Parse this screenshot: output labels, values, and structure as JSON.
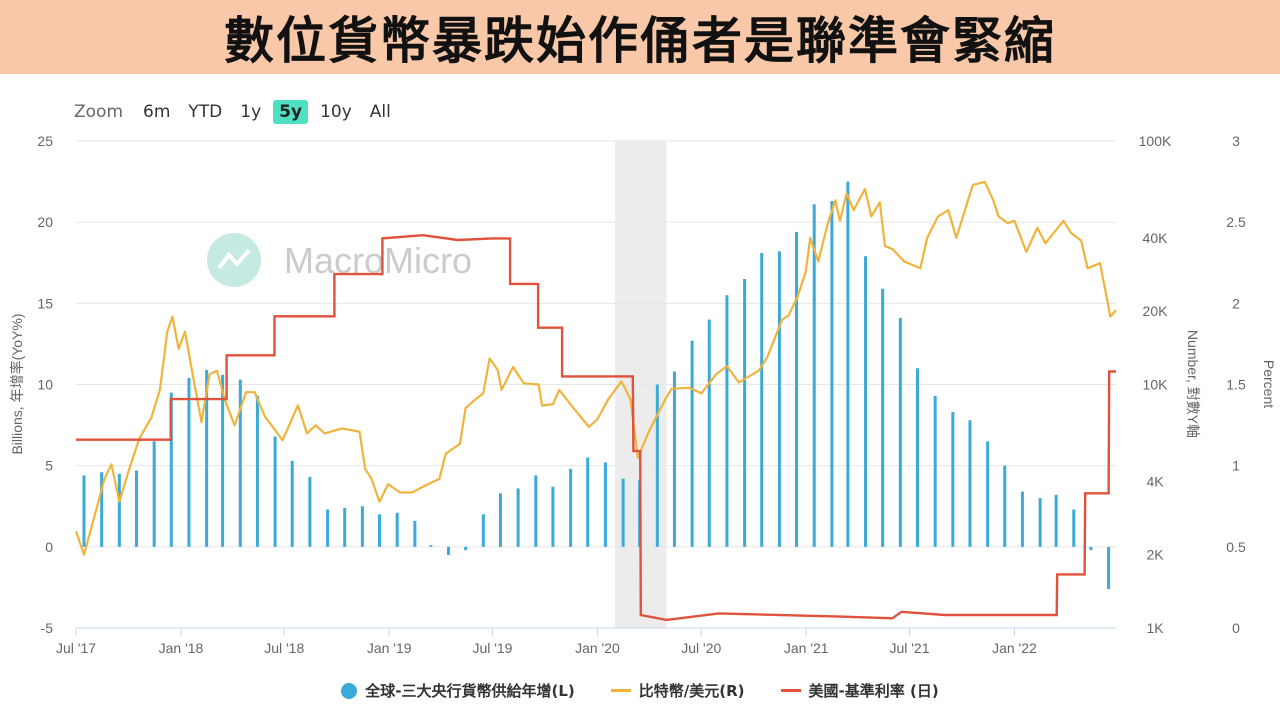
{
  "banner": {
    "title": "數位貨幣暴跌始作俑者是聯準會緊縮"
  },
  "zoom": {
    "label": "Zoom",
    "options": [
      "6m",
      "YTD",
      "1y",
      "5y",
      "10y",
      "All"
    ],
    "active": "5y"
  },
  "watermark": "MacroMicro",
  "colors": {
    "bar": "#3aaad8",
    "btc": "#f0b43c",
    "rate": "#e0523c",
    "recession": "#ececec",
    "accent": "#4de1c1"
  },
  "chart_data": {
    "type": "bar+line",
    "x_ticks": [
      "Jul '17",
      "Jan '18",
      "Jul '18",
      "Jan '19",
      "Jul '19",
      "Jan '20",
      "Jul '20",
      "Jan '21",
      "Jul '21",
      "Jan '22"
    ],
    "x_range": [
      "2017-07",
      "2022-12"
    ],
    "left_axis": {
      "label": "Billions, 年增率(YoY%)",
      "range": [
        -5,
        25
      ],
      "ticks": [
        25,
        20,
        15,
        10,
        5,
        0,
        -5
      ]
    },
    "right_axis_btc": {
      "label": "Number, 對數Y軸",
      "scale": "log",
      "range": [
        1000,
        100000
      ],
      "ticks": [
        "100K",
        "40K",
        "20K",
        "10K",
        "4K",
        "2K",
        "1K"
      ],
      "tick_values": [
        100000,
        40000,
        20000,
        10000,
        4000,
        2000,
        1000
      ]
    },
    "right_axis_rate": {
      "label": "Percent",
      "range": [
        0,
        3
      ],
      "ticks": [
        3,
        2.5,
        2,
        1.5,
        1,
        0.5,
        0
      ]
    },
    "recession_band": {
      "start": "2020-02",
      "end": "2020-05"
    },
    "series": [
      {
        "name": "全球-三大央行貨幣供給年增(L)",
        "type": "bar",
        "axis": "left",
        "points": [
          [
            "2017-07",
            4.4
          ],
          [
            "2017-08",
            4.6
          ],
          [
            "2017-09",
            4.5
          ],
          [
            "2017-10",
            4.7
          ],
          [
            "2017-11",
            6.5
          ],
          [
            "2017-12",
            9.5
          ],
          [
            "2018-01",
            10.4
          ],
          [
            "2018-02",
            10.9
          ],
          [
            "2018-03",
            10.6
          ],
          [
            "2018-04",
            10.3
          ],
          [
            "2018-05",
            9.3
          ],
          [
            "2018-06",
            6.8
          ],
          [
            "2018-07",
            5.3
          ],
          [
            "2018-08",
            4.3
          ],
          [
            "2018-09",
            2.3
          ],
          [
            "2018-10",
            2.4
          ],
          [
            "2018-11",
            2.5
          ],
          [
            "2018-12",
            2.0
          ],
          [
            "2019-01",
            2.1
          ],
          [
            "2019-02",
            1.6
          ],
          [
            "2019-03",
            0.1
          ],
          [
            "2019-04",
            -0.5
          ],
          [
            "2019-05",
            -0.2
          ],
          [
            "2019-06",
            2.0
          ],
          [
            "2019-07",
            3.3
          ],
          [
            "2019-08",
            3.6
          ],
          [
            "2019-09",
            4.4
          ],
          [
            "2019-10",
            3.7
          ],
          [
            "2019-11",
            4.8
          ],
          [
            "2019-12",
            5.5
          ],
          [
            "2020-01",
            5.2
          ],
          [
            "2020-02",
            4.2
          ],
          [
            "2020-03",
            4.1
          ],
          [
            "2020-04",
            10.0
          ],
          [
            "2020-05",
            10.8
          ],
          [
            "2020-06",
            12.7
          ],
          [
            "2020-07",
            14.0
          ],
          [
            "2020-08",
            15.5
          ],
          [
            "2020-09",
            16.5
          ],
          [
            "2020-10",
            18.1
          ],
          [
            "2020-11",
            18.2
          ],
          [
            "2020-12",
            19.4
          ],
          [
            "2021-01",
            21.1
          ],
          [
            "2021-02",
            21.3
          ],
          [
            "2021-03",
            22.5
          ],
          [
            "2021-04",
            17.9
          ],
          [
            "2021-05",
            15.9
          ],
          [
            "2021-06",
            14.1
          ],
          [
            "2021-07",
            11.0
          ],
          [
            "2021-08",
            9.3
          ],
          [
            "2021-09",
            8.3
          ],
          [
            "2021-10",
            7.8
          ],
          [
            "2021-11",
            6.5
          ],
          [
            "2021-12",
            5.0
          ],
          [
            "2022-01",
            3.4
          ],
          [
            "2022-02",
            3.0
          ],
          [
            "2022-03",
            3.2
          ],
          [
            "2022-04",
            2.3
          ],
          [
            "2022-05",
            -0.2
          ],
          [
            "2022-06",
            -2.6
          ]
        ]
      },
      {
        "name": "比特幣/美元(R)",
        "type": "line",
        "axis": "right_btc",
        "points": [
          [
            "2017-07-01",
            2500
          ],
          [
            "2017-07-15",
            2000
          ],
          [
            "2017-08-01",
            2800
          ],
          [
            "2017-08-20",
            4100
          ],
          [
            "2017-09-01",
            4700
          ],
          [
            "2017-09-15",
            3300
          ],
          [
            "2017-10-01",
            4400
          ],
          [
            "2017-10-20",
            6000
          ],
          [
            "2017-11-10",
            7300
          ],
          [
            "2017-11-25",
            9500
          ],
          [
            "2017-12-08",
            16500
          ],
          [
            "2017-12-17",
            19000
          ],
          [
            "2017-12-28",
            14000
          ],
          [
            "2018-01-08",
            16500
          ],
          [
            "2018-01-20",
            11500
          ],
          [
            "2018-02-06",
            7000
          ],
          [
            "2018-02-20",
            11000
          ],
          [
            "2018-03-05",
            11400
          ],
          [
            "2018-03-20",
            8500
          ],
          [
            "2018-04-05",
            6800
          ],
          [
            "2018-04-25",
            9300
          ],
          [
            "2018-05-10",
            9300
          ],
          [
            "2018-05-28",
            7400
          ],
          [
            "2018-06-15",
            6500
          ],
          [
            "2018-06-28",
            5900
          ],
          [
            "2018-07-25",
            8200
          ],
          [
            "2018-08-10",
            6300
          ],
          [
            "2018-08-25",
            6800
          ],
          [
            "2018-09-10",
            6300
          ],
          [
            "2018-10-10",
            6600
          ],
          [
            "2018-11-10",
            6400
          ],
          [
            "2018-11-20",
            4500
          ],
          [
            "2018-12-01",
            4100
          ],
          [
            "2018-12-15",
            3300
          ],
          [
            "2018-12-30",
            3900
          ],
          [
            "2019-01-20",
            3600
          ],
          [
            "2019-02-10",
            3600
          ],
          [
            "2019-03-01",
            3800
          ],
          [
            "2019-03-30",
            4100
          ],
          [
            "2019-04-10",
            5200
          ],
          [
            "2019-05-05",
            5700
          ],
          [
            "2019-05-15",
            8000
          ],
          [
            "2019-05-30",
            8600
          ],
          [
            "2019-06-15",
            9200
          ],
          [
            "2019-06-26",
            12800
          ],
          [
            "2019-07-10",
            11500
          ],
          [
            "2019-07-17",
            9500
          ],
          [
            "2019-08-06",
            11800
          ],
          [
            "2019-08-25",
            10100
          ],
          [
            "2019-09-20",
            10000
          ],
          [
            "2019-09-26",
            8200
          ],
          [
            "2019-10-15",
            8300
          ],
          [
            "2019-10-26",
            9500
          ],
          [
            "2019-11-20",
            8000
          ],
          [
            "2019-12-17",
            6700
          ],
          [
            "2020-01-01",
            7200
          ],
          [
            "2020-01-20",
            8700
          ],
          [
            "2020-02-12",
            10300
          ],
          [
            "2020-02-28",
            8700
          ],
          [
            "2020-03-12",
            5000
          ],
          [
            "2020-03-31",
            6400
          ],
          [
            "2020-04-29",
            8700
          ],
          [
            "2020-05-10",
            9600
          ],
          [
            "2020-06-10",
            9700
          ],
          [
            "2020-07-01",
            9200
          ],
          [
            "2020-07-27",
            11000
          ],
          [
            "2020-08-15",
            11900
          ],
          [
            "2020-09-05",
            10200
          ],
          [
            "2020-10-10",
            11400
          ],
          [
            "2020-10-25",
            13000
          ],
          [
            "2020-11-20",
            18500
          ],
          [
            "2020-12-01",
            19200
          ],
          [
            "2020-12-17",
            23000
          ],
          [
            "2020-12-31",
            29000
          ],
          [
            "2021-01-08",
            40000
          ],
          [
            "2021-01-22",
            32000
          ],
          [
            "2021-02-08",
            46000
          ],
          [
            "2021-02-21",
            57000
          ],
          [
            "2021-03-01",
            47000
          ],
          [
            "2021-03-13",
            61000
          ],
          [
            "2021-03-25",
            52000
          ],
          [
            "2021-04-14",
            63500
          ],
          [
            "2021-04-25",
            49000
          ],
          [
            "2021-05-10",
            56000
          ],
          [
            "2021-05-19",
            37000
          ],
          [
            "2021-06-01",
            36000
          ],
          [
            "2021-06-22",
            32000
          ],
          [
            "2021-07-20",
            30000
          ],
          [
            "2021-08-01",
            40000
          ],
          [
            "2021-08-20",
            49000
          ],
          [
            "2021-09-07",
            52000
          ],
          [
            "2021-09-21",
            40000
          ],
          [
            "2021-10-05",
            51000
          ],
          [
            "2021-10-20",
            66000
          ],
          [
            "2021-11-10",
            68000
          ],
          [
            "2021-11-25",
            57000
          ],
          [
            "2021-12-04",
            49000
          ],
          [
            "2021-12-20",
            46000
          ],
          [
            "2022-01-01",
            47000
          ],
          [
            "2022-01-22",
            35000
          ],
          [
            "2022-02-10",
            44000
          ],
          [
            "2022-02-24",
            38000
          ],
          [
            "2022-03-28",
            47000
          ],
          [
            "2022-04-10",
            42000
          ],
          [
            "2022-04-28",
            39000
          ],
          [
            "2022-05-09",
            30000
          ],
          [
            "2022-05-31",
            31500
          ],
          [
            "2022-06-13",
            22000
          ],
          [
            "2022-06-18",
            19000
          ],
          [
            "2022-06-28",
            20200
          ]
        ]
      },
      {
        "name": "美國-基準利率 (日)",
        "type": "line",
        "axis": "right_rate",
        "points": [
          [
            "2017-07-01",
            1.16
          ],
          [
            "2017-12-14",
            1.16
          ],
          [
            "2017-12-14",
            1.41
          ],
          [
            "2018-03-22",
            1.41
          ],
          [
            "2018-03-22",
            1.68
          ],
          [
            "2018-06-14",
            1.68
          ],
          [
            "2018-06-14",
            1.92
          ],
          [
            "2018-09-27",
            1.92
          ],
          [
            "2018-09-27",
            2.18
          ],
          [
            "2018-12-20",
            2.18
          ],
          [
            "2018-12-20",
            2.4
          ],
          [
            "2019-03-01",
            2.42
          ],
          [
            "2019-05-01",
            2.39
          ],
          [
            "2019-07-01",
            2.4
          ],
          [
            "2019-08-01",
            2.4
          ],
          [
            "2019-08-01",
            2.12
          ],
          [
            "2019-09-19",
            2.12
          ],
          [
            "2019-09-19",
            1.85
          ],
          [
            "2019-10-31",
            1.85
          ],
          [
            "2019-10-31",
            1.55
          ],
          [
            "2020-03-03",
            1.55
          ],
          [
            "2020-03-04",
            1.09
          ],
          [
            "2020-03-16",
            1.09
          ],
          [
            "2020-03-17",
            0.08
          ],
          [
            "2020-05-01",
            0.05
          ],
          [
            "2020-08-01",
            0.09
          ],
          [
            "2021-03-01",
            0.07
          ],
          [
            "2021-06-01",
            0.06
          ],
          [
            "2021-06-17",
            0.1
          ],
          [
            "2021-09-01",
            0.08
          ],
          [
            "2022-03-16",
            0.08
          ],
          [
            "2022-03-17",
            0.33
          ],
          [
            "2022-05-04",
            0.33
          ],
          [
            "2022-05-05",
            0.83
          ],
          [
            "2022-06-15",
            0.83
          ],
          [
            "2022-06-16",
            1.58
          ],
          [
            "2022-06-28",
            1.58
          ]
        ]
      }
    ],
    "legend": [
      "全球-三大央行貨幣供給年增(L)",
      "比特幣/美元(R)",
      "美國-基準利率 (日)"
    ],
    "legend_position": "bottom"
  }
}
